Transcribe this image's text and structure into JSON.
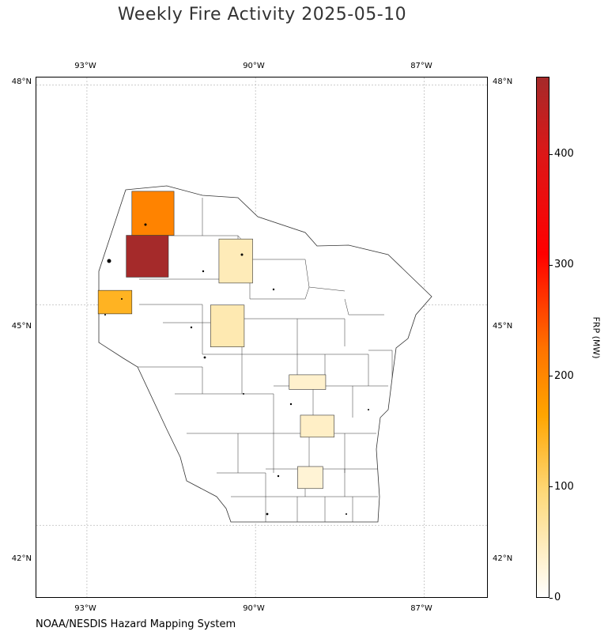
{
  "title": "Weekly Fire Activity 2025-05-10",
  "source": "NOAA/NESDIS Hazard Mapping System",
  "map": {
    "lon_range": [
      -93.9,
      -85.85
    ],
    "lat_range": [
      41.0,
      48.1
    ],
    "lon_ticks": [
      {
        "value": -93,
        "label": "93°W"
      },
      {
        "value": -90,
        "label": "90°W"
      },
      {
        "value": -87,
        "label": "87°W"
      }
    ],
    "lat_ticks": [
      {
        "value": 48,
        "label": "48°N"
      },
      {
        "value": 45,
        "label": "45°N"
      },
      {
        "value": 42,
        "label": "42°N"
      }
    ],
    "gridlines": true,
    "outline_color": "#333333"
  },
  "colorbar": {
    "label": "FRP (MW)",
    "min": 0,
    "max": 470,
    "ticks": [
      {
        "value": 0,
        "label": "0"
      },
      {
        "value": 100,
        "label": "100"
      },
      {
        "value": 200,
        "label": "200"
      },
      {
        "value": 300,
        "label": "300"
      },
      {
        "value": 400,
        "label": "400"
      }
    ],
    "colormap": [
      {
        "stop": 0.0,
        "color": "#ffffff"
      },
      {
        "stop": 0.2,
        "color": "#fed97a"
      },
      {
        "stop": 0.35,
        "color": "#ffa500"
      },
      {
        "stop": 0.48,
        "color": "#ff7200"
      },
      {
        "stop": 0.66,
        "color": "#ff0000"
      },
      {
        "stop": 0.85,
        "color": "#dd1717"
      },
      {
        "stop": 1.0,
        "color": "#a52a2a"
      }
    ]
  },
  "regions": [
    {
      "lon": [
        -92.3,
        -91.55
      ],
      "lat": [
        45.38,
        45.95
      ],
      "frp": 470
    },
    {
      "lon": [
        -92.2,
        -91.45
      ],
      "lat": [
        45.95,
        46.55
      ],
      "frp": 205
    },
    {
      "lon": [
        -92.8,
        -92.2
      ],
      "lat": [
        44.88,
        45.2
      ],
      "frp": 145
    },
    {
      "lon": [
        -90.65,
        -90.05
      ],
      "lat": [
        45.3,
        45.9
      ],
      "frp": 50
    },
    {
      "lon": [
        -90.8,
        -90.2
      ],
      "lat": [
        44.43,
        45.0
      ],
      "frp": 55
    },
    {
      "lon": [
        -89.4,
        -88.75
      ],
      "lat": [
        43.85,
        44.05
      ],
      "frp": 35
    },
    {
      "lon": [
        -89.2,
        -88.6
      ],
      "lat": [
        43.2,
        43.5
      ],
      "frp": 40
    },
    {
      "lon": [
        -89.25,
        -88.8
      ],
      "lat": [
        42.5,
        42.8
      ],
      "frp": 30
    }
  ]
}
